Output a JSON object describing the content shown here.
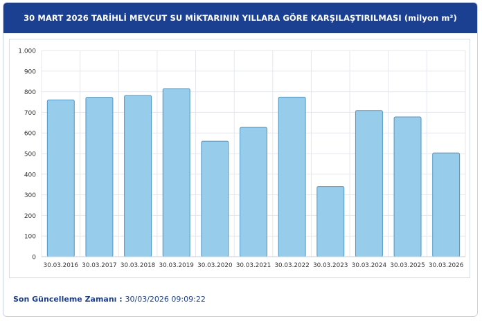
{
  "header": {
    "title": "30 MART 2026 TARİHLİ MEVCUT SU MİKTARININ YILLARA GÖRE KARŞILAŞTIRILMASI (milyon m³)"
  },
  "chart_data": {
    "type": "bar",
    "categories": [
      "30.03.2016",
      "30.03.2017",
      "30.03.2018",
      "30.03.2019",
      "30.03.2020",
      "30.03.2021",
      "30.03.2022",
      "30.03.2023",
      "30.03.2024",
      "30.03.2025",
      "30.03.2026"
    ],
    "values": [
      760,
      773,
      782,
      815,
      560,
      627,
      774,
      340,
      709,
      678,
      503
    ],
    "ylim": [
      0,
      1000
    ],
    "yticks": [
      0,
      100,
      200,
      300,
      400,
      500,
      600,
      700,
      800,
      900,
      1000
    ],
    "ytick_labels": [
      "0",
      "100",
      "200",
      "300",
      "400",
      "500",
      "600",
      "700",
      "800",
      "900",
      "1.000"
    ],
    "grid": true,
    "colors": {
      "bar_fill": "#97cdeb",
      "bar_stroke": "#4b96c5",
      "grid": "#e3e7ee",
      "axis_text": "#333333"
    }
  },
  "footer": {
    "label": "Son Güncelleme Zamanı",
    "separator": " : ",
    "value": "30/03/2026 09:09:22"
  }
}
